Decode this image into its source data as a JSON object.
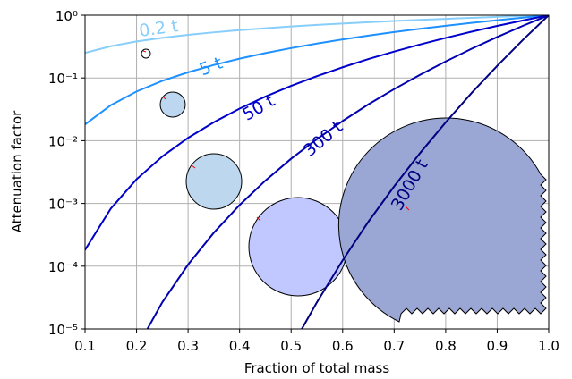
{
  "chart_data": {
    "type": "line",
    "x_label": "Fraction of total mass",
    "y_label": "Attenuation factor",
    "x": [
      0.1,
      0.15,
      0.2,
      0.25,
      0.3,
      0.35,
      0.4,
      0.45,
      0.5,
      0.55,
      0.6,
      0.65,
      0.7,
      0.75,
      0.8,
      0.85,
      0.9,
      0.95,
      1.0
    ],
    "series": [
      {
        "name": "0.2 t",
        "color": "#87cefa",
        "values": [
          0.251,
          0.32,
          0.381,
          0.435,
          0.486,
          0.533,
          0.577,
          0.619,
          0.66,
          0.699,
          0.736,
          0.772,
          0.807,
          0.841,
          0.875,
          0.907,
          0.939,
          0.97,
          1
        ]
      },
      {
        "name": "5 t",
        "color": "#1e90ff",
        "values": [
          0.0182,
          0.0368,
          0.0608,
          0.0898,
          0.123,
          0.161,
          0.203,
          0.249,
          0.299,
          0.353,
          0.411,
          0.472,
          0.538,
          0.606,
          0.678,
          0.754,
          0.833,
          0.915,
          1
        ]
      },
      {
        "name": "50 t",
        "color": "#0000cd",
        "values": [
          0.000182,
          0.000828,
          0.00243,
          0.00561,
          0.0111,
          0.0197,
          0.0325,
          0.0504,
          0.0748,
          0.107,
          0.148,
          0.2,
          0.263,
          0.341,
          0.434,
          0.545,
          0.674,
          0.825,
          1
        ]
      },
      {
        "name": "300 t",
        "color": "#0000b0",
        "values": [
          null,
          null,
          4.9e-06,
          2.66e-05,
          0.000106,
          0.000342,
          0.000944,
          0.00231,
          0.00516,
          0.0106,
          0.0206,
          0.0379,
          0.0664,
          0.112,
          0.183,
          0.291,
          0.449,
          0.677,
          1
        ]
      },
      {
        "name": "3000 t",
        "color": "#000080",
        "values": [
          null,
          null,
          null,
          null,
          null,
          null,
          null,
          null,
          5e-06,
          2.65e-05,
          0.000124,
          0.000512,
          0.00187,
          0.00631,
          0.0196,
          0.0572,
          0.156,
          0.405,
          1
        ]
      }
    ],
    "xlim": [
      0.1,
      1.0
    ],
    "xticks": [
      0.1,
      0.2,
      0.3,
      0.4,
      0.5,
      0.6,
      0.7,
      0.8,
      0.9,
      {
        "value": 1.0,
        "label": "1.0"
      }
    ],
    "ylim": [
      1e-05,
      1
    ],
    "yticks": [
      {
        "value": 1e-05,
        "label": "10⁻⁵"
      },
      {
        "value": 0.0001,
        "label": "10⁻⁴"
      },
      {
        "value": 0.001,
        "label": "10⁻³"
      },
      {
        "value": 0.01,
        "label": "10⁻²"
      },
      {
        "value": 0.1,
        "label": "10⁻¹"
      },
      {
        "value": 1,
        "label": "10⁰"
      }
    ],
    "y_scale": "log",
    "grid": true
  }
}
